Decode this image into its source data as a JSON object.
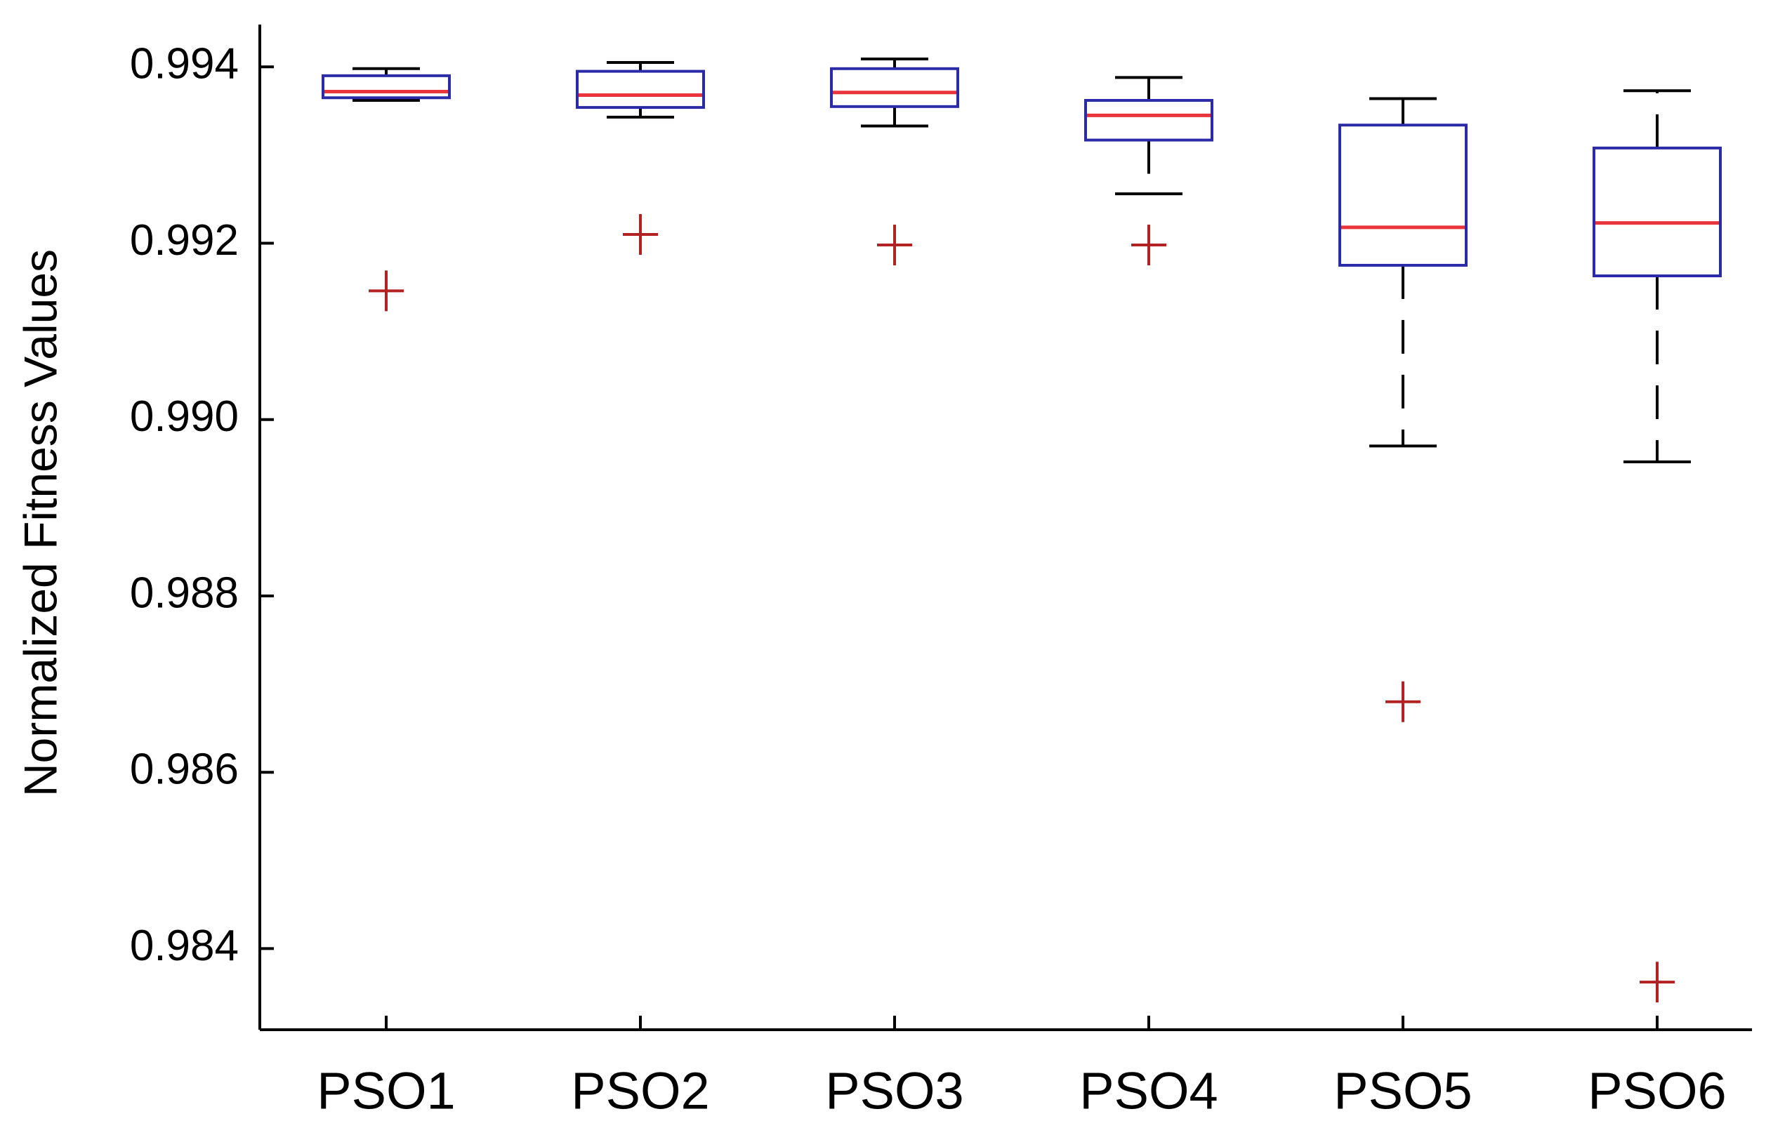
{
  "chart_data": {
    "type": "boxplot",
    "title": "",
    "xlabel": "",
    "ylabel": "Normalized Fitness Values",
    "ylim": [
      0.98308,
      0.99448
    ],
    "yticks": [
      0.984,
      0.986,
      0.988,
      0.99,
      0.992,
      0.994
    ],
    "ytick_labels": [
      "0.984",
      "0.986",
      "0.988",
      "0.990",
      "0.992",
      "0.994"
    ],
    "categories": [
      "PSO1",
      "PSO2",
      "PSO3",
      "PSO4",
      "PSO5",
      "PSO6"
    ],
    "boxes": [
      {
        "name": "PSO1",
        "whisker_low": 0.99362,
        "q1": 0.99365,
        "median": 0.99372,
        "q3": 0.9939,
        "whisker_high": 0.99398,
        "outliers": [
          0.99146
        ]
      },
      {
        "name": "PSO2",
        "whisker_low": 0.99343,
        "q1": 0.99354,
        "median": 0.99368,
        "q3": 0.99395,
        "whisker_high": 0.99405,
        "outliers": [
          0.9921
        ]
      },
      {
        "name": "PSO3",
        "whisker_low": 0.99333,
        "q1": 0.99355,
        "median": 0.99371,
        "q3": 0.99398,
        "whisker_high": 0.99409,
        "outliers": [
          0.99198
        ]
      },
      {
        "name": "PSO4",
        "whisker_low": 0.99256,
        "q1": 0.99317,
        "median": 0.99345,
        "q3": 0.99362,
        "whisker_high": 0.99388,
        "outliers": [
          0.99198
        ]
      },
      {
        "name": "PSO5",
        "whisker_low": 0.9897,
        "q1": 0.99175,
        "median": 0.99218,
        "q3": 0.99334,
        "whisker_high": 0.99364,
        "outliers": [
          0.9868
        ]
      },
      {
        "name": "PSO6",
        "whisker_low": 0.98952,
        "q1": 0.99163,
        "median": 0.99223,
        "q3": 0.99308,
        "whisker_high": 0.99373,
        "outliers": [
          0.98362
        ]
      }
    ],
    "colors": {
      "box_edge": "#2b2ba8",
      "median": "#e8343a",
      "whisker": "#000000",
      "outlier": "#b22222",
      "axis": "#000000"
    },
    "grid": false,
    "legend": "none"
  }
}
